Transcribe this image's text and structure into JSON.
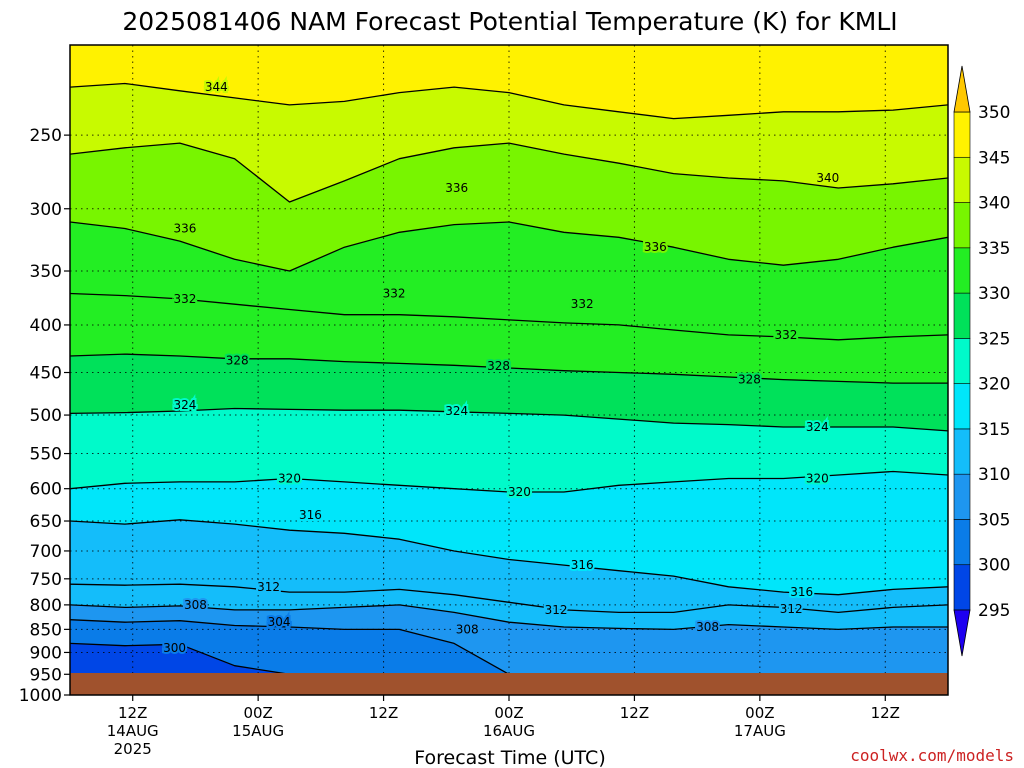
{
  "chart_data": {
    "type": "heatmap",
    "title": "2025081406 NAM Forecast Potential Temperature (K) for KMLI",
    "xlabel": "Forecast Time (UTC)",
    "ylabel": "",
    "y_axis": {
      "quantity": "pressure (hPa)",
      "ticks": [
        250,
        300,
        350,
        400,
        450,
        500,
        550,
        600,
        650,
        700,
        750,
        800,
        850,
        900,
        950,
        1000
      ],
      "range": [
        1000,
        200
      ],
      "scale": "log-pressure"
    },
    "x_axis": {
      "range_hours": [
        0,
        84
      ],
      "ticks": [
        {
          "hour": 6,
          "label": "12Z",
          "date": "14AUG",
          "year": "2025"
        },
        {
          "hour": 18,
          "label": "00Z",
          "date": "15AUG",
          "year": ""
        },
        {
          "hour": 30,
          "label": "12Z",
          "date": "",
          "year": ""
        },
        {
          "hour": 42,
          "label": "00Z",
          "date": "16AUG",
          "year": ""
        },
        {
          "hour": 54,
          "label": "12Z",
          "date": "",
          "year": ""
        },
        {
          "hour": 66,
          "label": "00Z",
          "date": "17AUG",
          "year": ""
        },
        {
          "hour": 78,
          "label": "12Z",
          "date": "",
          "year": ""
        }
      ]
    },
    "colorbar": {
      "levels": [
        295,
        300,
        305,
        310,
        315,
        320,
        325,
        330,
        335,
        340,
        345,
        350
      ],
      "colors": [
        "#1e00f0",
        "#0046e6",
        "#0a7ce8",
        "#1e96f0",
        "#14bdfa",
        "#00e6fa",
        "#00faca",
        "#00e15a",
        "#23ee23",
        "#78f500",
        "#c8fa00",
        "#fff200",
        "#ffc800"
      ]
    },
    "series": [
      {
        "theta": 300,
        "values": [
          880,
          885,
          882,
          930,
          950,
          960,
          960,
          960,
          960,
          960,
          960,
          960,
          960,
          960,
          960,
          960,
          960
        ]
      },
      {
        "theta": 304,
        "values": [
          830,
          835,
          832,
          842,
          845,
          850,
          850,
          880,
          950,
          950,
          950,
          950,
          950,
          950,
          950,
          950,
          950
        ]
      },
      {
        "theta": 308,
        "values": [
          800,
          805,
          802,
          810,
          810,
          805,
          800,
          815,
          835,
          845,
          848,
          850,
          840,
          845,
          850,
          845,
          845
        ]
      },
      {
        "theta": 312,
        "values": [
          760,
          762,
          760,
          765,
          775,
          775,
          770,
          780,
          795,
          810,
          815,
          815,
          800,
          805,
          815,
          805,
          800
        ]
      },
      {
        "theta": 316,
        "values": [
          650,
          655,
          648,
          655,
          665,
          670,
          680,
          700,
          715,
          725,
          735,
          745,
          765,
          775,
          780,
          770,
          765
        ]
      },
      {
        "theta": 320,
        "values": [
          600,
          592,
          590,
          590,
          585,
          590,
          595,
          600,
          605,
          605,
          595,
          590,
          585,
          585,
          580,
          575,
          580
        ]
      },
      {
        "theta": 324,
        "values": [
          498,
          497,
          495,
          492,
          493,
          494,
          494,
          496,
          498,
          500,
          505,
          510,
          512,
          515,
          515,
          515,
          520
        ]
      },
      {
        "theta": 328,
        "values": [
          432,
          430,
          432,
          435,
          435,
          438,
          440,
          442,
          445,
          448,
          450,
          452,
          455,
          458,
          460,
          462,
          462
        ]
      },
      {
        "theta": 332,
        "values": [
          370,
          372,
          375,
          380,
          385,
          390,
          390,
          392,
          395,
          398,
          400,
          405,
          410,
          412,
          415,
          412,
          410
        ]
      },
      {
        "theta": 336,
        "values": [
          310,
          315,
          325,
          340,
          350,
          330,
          318,
          312,
          310,
          318,
          322,
          330,
          340,
          345,
          340,
          330,
          322
        ]
      },
      {
        "theta": 340,
        "values": [
          262,
          258,
          255,
          265,
          295,
          280,
          265,
          258,
          255,
          262,
          268,
          275,
          278,
          280,
          285,
          282,
          278
        ]
      },
      {
        "theta": 344,
        "values": [
          222,
          220,
          224,
          228,
          232,
          230,
          225,
          222,
          225,
          232,
          236,
          240,
          238,
          236,
          236,
          235,
          232
        ]
      }
    ],
    "contour_labels": [
      {
        "text": "344",
        "hour": 14.0,
        "p": 222
      },
      {
        "text": "340",
        "hour": 72.5,
        "p": 278
      },
      {
        "text": "336",
        "hour": 11.0,
        "p": 315
      },
      {
        "text": "336",
        "hour": 37.0,
        "p": 285
      },
      {
        "text": "336",
        "hour": 56.0,
        "p": 330
      },
      {
        "text": "332",
        "hour": 11.0,
        "p": 375
      },
      {
        "text": "332",
        "hour": 31.0,
        "p": 370
      },
      {
        "text": "332",
        "hour": 49.0,
        "p": 380
      },
      {
        "text": "332",
        "hour": 68.5,
        "p": 410
      },
      {
        "text": "328",
        "hour": 16.0,
        "p": 437
      },
      {
        "text": "328",
        "hour": 41.0,
        "p": 443
      },
      {
        "text": "328",
        "hour": 65.0,
        "p": 458
      },
      {
        "text": "324",
        "hour": 11.0,
        "p": 488
      },
      {
        "text": "324",
        "hour": 37.0,
        "p": 495
      },
      {
        "text": "324",
        "hour": 71.5,
        "p": 515
      },
      {
        "text": "320",
        "hour": 21.0,
        "p": 585
      },
      {
        "text": "320",
        "hour": 43.0,
        "p": 605
      },
      {
        "text": "320",
        "hour": 71.5,
        "p": 585
      },
      {
        "text": "316",
        "hour": 23.0,
        "p": 640
      },
      {
        "text": "316",
        "hour": 49.0,
        "p": 725
      },
      {
        "text": "316",
        "hour": 70.0,
        "p": 775
      },
      {
        "text": "312",
        "hour": 19.0,
        "p": 765
      },
      {
        "text": "312",
        "hour": 46.5,
        "p": 810
      },
      {
        "text": "312",
        "hour": 69.0,
        "p": 808
      },
      {
        "text": "308",
        "hour": 12.0,
        "p": 800
      },
      {
        "text": "308",
        "hour": 38.0,
        "p": 850
      },
      {
        "text": "308",
        "hour": 61.0,
        "p": 845
      },
      {
        "text": "304",
        "hour": 20.0,
        "p": 835
      },
      {
        "text": "300",
        "hour": 10.0,
        "p": 890
      }
    ]
  },
  "credit": "coolwx.com/models",
  "colors": {
    "ground": "#a0522d",
    "frame": "#000000",
    "contour": "#000000"
  }
}
